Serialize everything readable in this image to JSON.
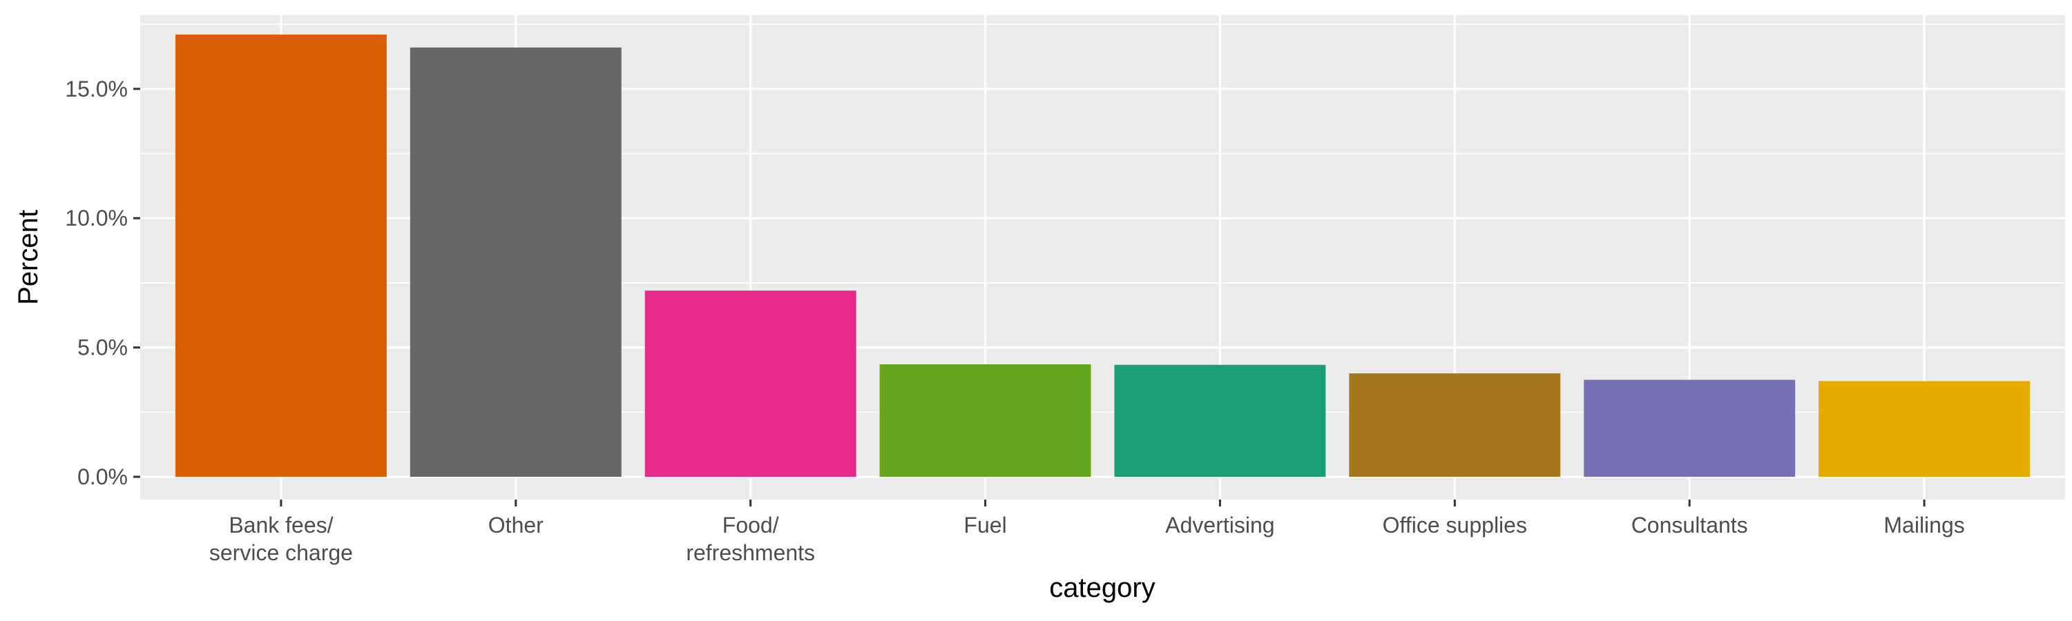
{
  "chart_data": {
    "type": "bar",
    "xlabel": "category",
    "ylabel": "Percent",
    "categories": [
      [
        "Bank fees/",
        "service charge"
      ],
      [
        "Other"
      ],
      [
        "Food/",
        "refreshments"
      ],
      [
        "Fuel"
      ],
      [
        "Advertising"
      ],
      [
        "Office supplies"
      ],
      [
        "Consultants"
      ],
      [
        "Mailings"
      ]
    ],
    "values": [
      17.1,
      16.6,
      7.2,
      4.35,
      4.33,
      4.0,
      3.75,
      3.7
    ],
    "colors": [
      "#D95F02",
      "#666666",
      "#E7298A",
      "#66A61E",
      "#1B9E77",
      "#A6761D",
      "#7570B3",
      "#E6AB02"
    ],
    "ylim": [
      -0.88,
      17.85
    ],
    "yticks": [
      0,
      5,
      10,
      15
    ],
    "ytick_labels": [
      "0.0%",
      "5.0%",
      "10.0%",
      "15.0%"
    ],
    "grid": true,
    "panel_background": "#EBEBEB",
    "grid_color": "#FFFFFF"
  }
}
